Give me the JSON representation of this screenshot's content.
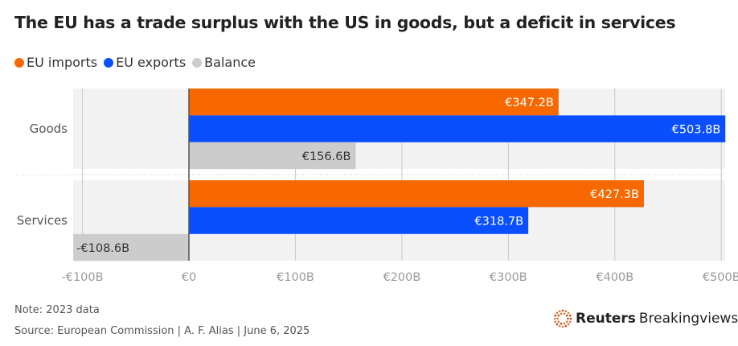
{
  "chart_data": {
    "type": "bar",
    "orientation": "horizontal",
    "title": "The EU has a trade surplus with the US in goods, but a deficit in services",
    "categories": [
      "Goods",
      "Services"
    ],
    "series": [
      {
        "name": "EU imports",
        "color": "#f76800",
        "values": [
          347.2,
          427.3
        ],
        "labels": [
          "€347.2B",
          "€427.3B"
        ]
      },
      {
        "name": "EU exports",
        "color": "#0a4fff",
        "values": [
          503.8,
          318.7
        ],
        "labels": [
          "€503.8B",
          "€318.7B"
        ]
      },
      {
        "name": "Balance",
        "color": "#cccccc",
        "values": [
          156.6,
          -108.6
        ],
        "labels": [
          "€156.6B",
          "-€108.6B"
        ]
      }
    ],
    "xlim": [
      -100,
      500
    ],
    "xticks": [
      -100,
      0,
      100,
      200,
      300,
      400,
      500
    ],
    "xtick_labels": [
      "-€100B",
      "€0",
      "€100B",
      "€200B",
      "€300B",
      "€400B",
      "€500B"
    ],
    "grid": true,
    "legend": "top-left"
  },
  "footer": {
    "note": "Note: 2023 data",
    "source": "Source: European Commission | A. F. Alias | June 6, 2025",
    "logo_text_bold": "Reuters",
    "logo_text": "Breakingviews"
  }
}
